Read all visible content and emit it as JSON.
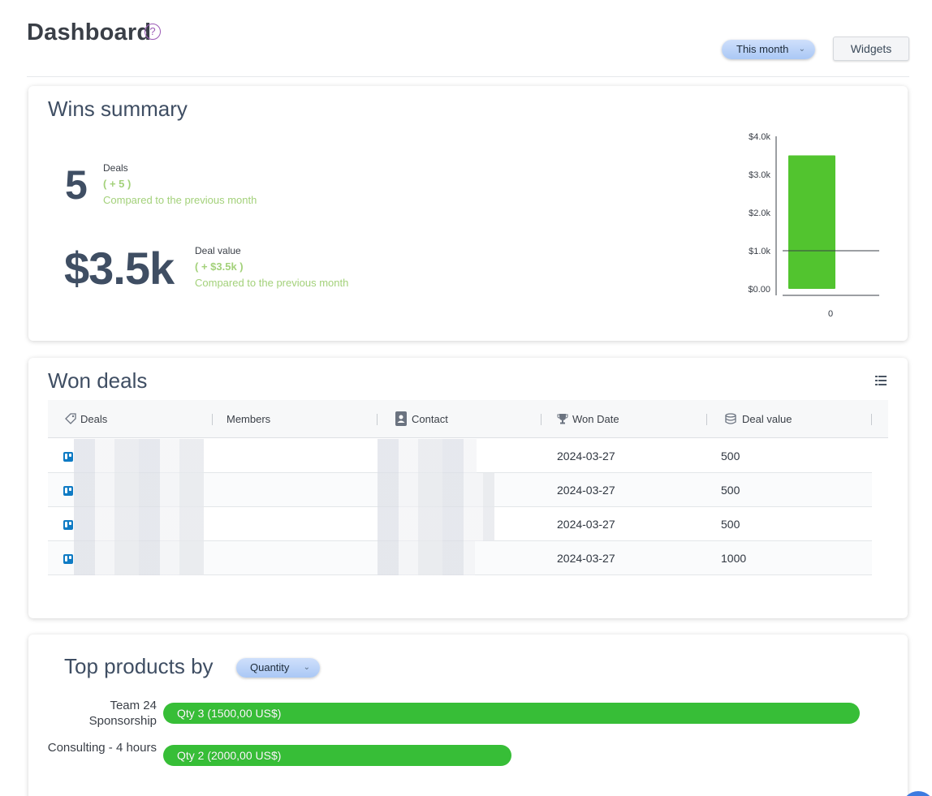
{
  "header": {
    "title": "Dashboard",
    "help_icon": "?",
    "period_select": "This month",
    "widgets_label": "Widgets"
  },
  "wins": {
    "title": "Wins summary",
    "deals_value": "5",
    "deals_label": "Deals",
    "deals_delta": "( + 5 )",
    "deals_compare": "Compared to the previous month",
    "value_value": "$3.5k",
    "value_label": "Deal value",
    "value_delta": "( + $3.5k )",
    "value_compare": "Compared to the previous month"
  },
  "chart_data": {
    "type": "bar",
    "categories": [
      "0"
    ],
    "values": [
      3500
    ],
    "ytick_labels": [
      "$4.0k",
      "$3.0k",
      "$2.0k",
      "$1.0k",
      "$0.00"
    ],
    "ylim": [
      0,
      4000
    ],
    "reference_line": 1000,
    "bar_color": "#52c42f"
  },
  "won": {
    "title": "Won deals",
    "columns": [
      "Deals",
      "Members",
      "Contact",
      "Won Date",
      "Deal value"
    ],
    "rows": [
      {
        "won_date": "2024-03-27",
        "deal_value": "500"
      },
      {
        "won_date": "2024-03-27",
        "deal_value": "500"
      },
      {
        "won_date": "2024-03-27",
        "deal_value": "500"
      },
      {
        "won_date": "2024-03-27",
        "deal_value": "1000"
      }
    ]
  },
  "top": {
    "title": "Top products by",
    "select": "Quantity",
    "products": [
      {
        "name": "Team 24 Sponsorship",
        "label": "Qty 3 (1500,00 US$)",
        "quantity": 3
      },
      {
        "name": "Consulting - 4 hours",
        "label": "Qty 2 (2000,00 US$)",
        "quantity": 2
      }
    ]
  },
  "colors": {
    "accent_select": "#aac8f5",
    "positive_delta": "#a3d17a",
    "bar_green": "#37be37",
    "trello_blue": "#0f7bc4"
  }
}
